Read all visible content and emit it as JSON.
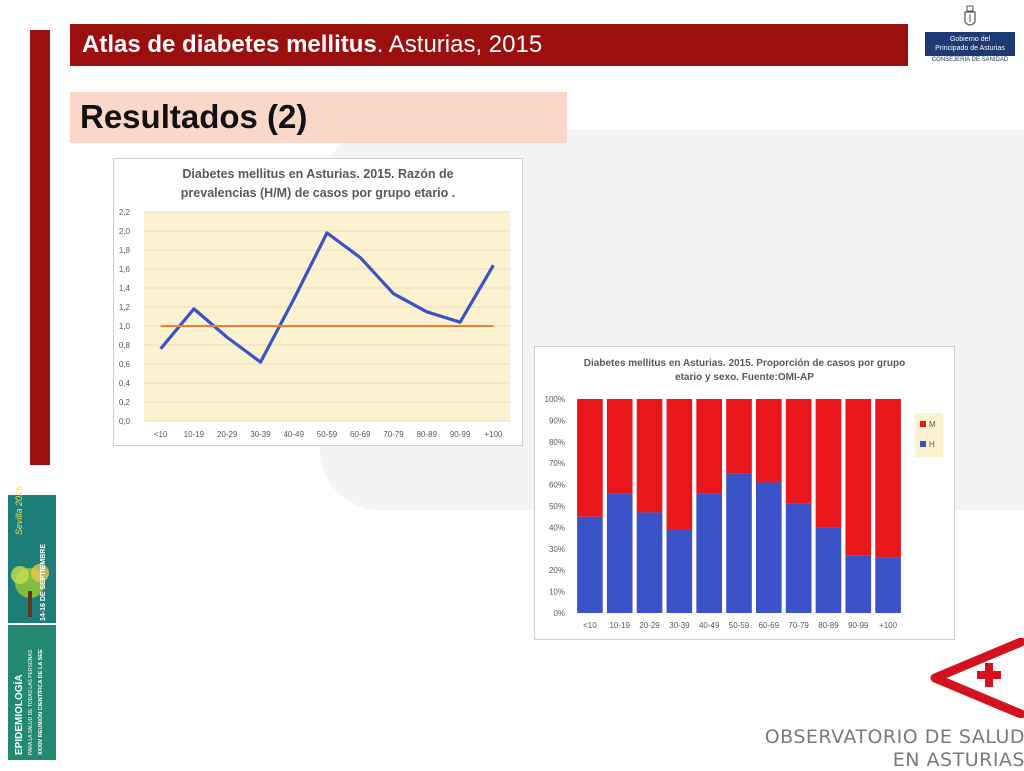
{
  "header": {
    "title_bold": "Atlas de diabetes mellitus",
    "title_rest": ". Asturias, 2015"
  },
  "subtitle": "Resultados (2)",
  "gov_logo": {
    "line1": "Gobierno del",
    "line2": "Principado de Asturias",
    "line3": "CONSEJERÍA DE SANIDAD"
  },
  "poster": {
    "brand": "Sevilla 2016",
    "dates": "14-16 DE SEPTIEMBRE",
    "title": "EPIDEMIOLOGÍA",
    "tagline": "PARA LA SALUD DE TODAS LAS PERSONAS",
    "meeting": "XXXIV REUNIÓN CIENTÍFICA DE LA SEE"
  },
  "obs_logo": {
    "line1": "OBSERVATORIO DE SALUD",
    "line2": "EN ASTURIAS",
    "color": "#d4121e"
  },
  "chart_data": [
    {
      "type": "line",
      "title_line1": "Diabetes mellitus en Asturias. 2015. Razón de",
      "title_line2": "prevalencias (H/M) de casos por grupo etario .",
      "categories": [
        "<10",
        "10-19",
        "20-29",
        "30-39",
        "40-49",
        "50-59",
        "60-69",
        "70-79",
        "80-89",
        "90-99",
        "+100"
      ],
      "series": [
        {
          "values": [
            0.76,
            1.18,
            0.88,
            0.62,
            1.28,
            1.98,
            1.72,
            1.34,
            1.15,
            1.04,
            1.64
          ],
          "color": "#3a53c6"
        },
        {
          "values": [
            1.0,
            1.0,
            1.0,
            1.0,
            1.0,
            1.0,
            1.0,
            1.0,
            1.0,
            1.0,
            1.0
          ],
          "color": "#ed7d31"
        }
      ],
      "ylim": [
        0,
        2.2
      ],
      "yticks": [
        "0,0",
        "0,2",
        "0,4",
        "0,6",
        "0,8",
        "1,0",
        "1,2",
        "1,4",
        "1,6",
        "1,8",
        "2,0",
        "2,2"
      ],
      "plot_bg": "#fdf2cf",
      "grid": true
    },
    {
      "type": "bar",
      "stacked": true,
      "title_line1": "Diabetes mellitus en Asturias. 2015. Proporción de casos por grupo",
      "title_line2": "etario y sexo. Fuente:OMI-AP",
      "categories": [
        "<10",
        "10-19",
        "20-29",
        "30-39",
        "40-49",
        "50-59",
        "60-69",
        "70-79",
        "80-89",
        "90-99",
        "+100"
      ],
      "series": [
        {
          "name": "H",
          "values": [
            45,
            56,
            47,
            39,
            56,
            65,
            61,
            51,
            40,
            27,
            26
          ],
          "color": "#3a53c6"
        },
        {
          "name": "M",
          "values": [
            55,
            44,
            53,
            61,
            44,
            35,
            39,
            49,
            60,
            73,
            74
          ],
          "color": "#e8171b"
        }
      ],
      "ylim": [
        0,
        100
      ],
      "yticks": [
        "0%",
        "10%",
        "20%",
        "30%",
        "40%",
        "50%",
        "60%",
        "70%",
        "80%",
        "90%",
        "100%"
      ],
      "legend": "right",
      "legend_bg": "#fdf2cf"
    }
  ]
}
